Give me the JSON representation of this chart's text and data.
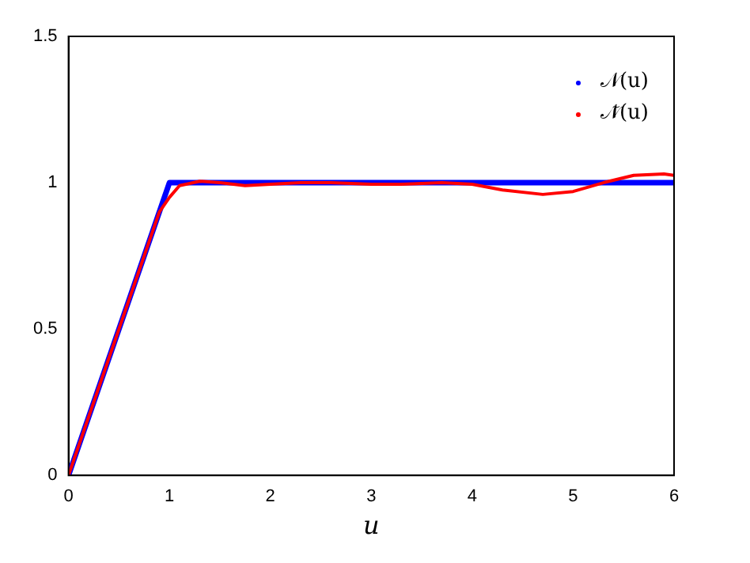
{
  "chart_data": {
    "type": "line",
    "xlabel": "u",
    "xlim": [
      0,
      6
    ],
    "xticks": [
      0,
      1,
      2,
      3,
      4,
      5,
      6
    ],
    "ylim": [
      0,
      1.5
    ],
    "yticks": [
      0,
      0.5,
      1,
      1.5
    ],
    "grid": false,
    "legend": "top right",
    "marker": "none",
    "line_style": "solid",
    "series": [
      {
        "name": "𝒩(u)",
        "color": "#0000ff",
        "x": [
          0,
          1,
          6
        ],
        "values": [
          0,
          1,
          1
        ]
      },
      {
        "name": "𝒩̃(u)",
        "color": "#ff0000",
        "x": [
          0,
          0.5,
          0.8,
          0.9,
          1.0,
          1.1,
          1.3,
          1.5,
          1.75,
          2,
          2.3,
          2.6,
          3,
          3.3,
          3.7,
          4,
          4.3,
          4.7,
          5,
          5.3,
          5.6,
          5.9,
          6
        ],
        "values": [
          0,
          0.5,
          0.8,
          0.9,
          0.95,
          0.99,
          1.005,
          1.0,
          0.99,
          0.995,
          1.0,
          1.0,
          0.995,
          0.995,
          1.0,
          0.995,
          0.975,
          0.96,
          0.97,
          1.0,
          1.025,
          1.03,
          1.025
        ]
      }
    ]
  }
}
